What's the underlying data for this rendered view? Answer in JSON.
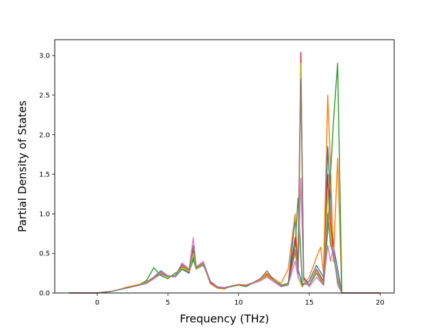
{
  "chart_data": {
    "type": "line",
    "title": "",
    "xlabel": "Frequency (THz)",
    "ylabel": "Partial Density of States",
    "xlim": [
      -3,
      21
    ],
    "ylim": [
      0,
      3.2
    ],
    "xticks": [
      0,
      5,
      10,
      15,
      20
    ],
    "yticks": [
      0.0,
      0.5,
      1.0,
      1.5,
      2.0,
      2.5,
      3.0
    ],
    "xtick_labels": [
      "0",
      "5",
      "10",
      "15",
      "20"
    ],
    "ytick_labels": [
      "0.0",
      "0.5",
      "1.0",
      "1.5",
      "2.0",
      "2.5",
      "3.0"
    ],
    "grid": false,
    "legend": "none",
    "series": [
      {
        "color": "#1f77b4",
        "x": [
          -2,
          -1,
          0,
          0.5,
          1,
          1.5,
          2,
          2.5,
          3,
          3.5,
          4,
          4.5,
          5,
          5.5,
          6,
          6.5,
          6.8,
          7,
          7.5,
          8,
          8.5,
          9,
          9.5,
          10,
          10.5,
          11,
          11.5,
          12,
          12.5,
          13,
          13.5,
          14,
          14.2,
          14.5,
          15,
          15.5,
          16,
          16.3,
          16.5,
          16.7,
          17,
          17.3,
          18,
          19,
          20
        ],
        "y": [
          0,
          0,
          0.0,
          0.01,
          0.02,
          0.04,
          0.06,
          0.08,
          0.1,
          0.14,
          0.2,
          0.28,
          0.22,
          0.2,
          0.3,
          0.25,
          0.45,
          0.3,
          0.35,
          0.15,
          0.08,
          0.06,
          0.08,
          0.1,
          0.09,
          0.12,
          0.16,
          0.22,
          0.15,
          0.08,
          0.1,
          0.95,
          0.3,
          0.1,
          0.15,
          0.35,
          0.2,
          1.85,
          1.2,
          0.6,
          0.3,
          0.0,
          0,
          0,
          0
        ]
      },
      {
        "color": "#ff7f0e",
        "x": [
          -2,
          -1,
          0,
          0.5,
          1,
          1.5,
          2,
          2.5,
          3,
          3.5,
          4,
          4.5,
          5,
          5.5,
          6,
          6.5,
          6.8,
          7,
          7.5,
          8,
          8.5,
          9,
          9.5,
          10,
          10.5,
          11,
          11.5,
          12,
          12.5,
          13,
          13.5,
          14,
          14.2,
          14.5,
          15,
          15.5,
          15.8,
          16,
          16.3,
          16.5,
          16.7,
          17,
          17.3,
          18,
          19,
          20
        ],
        "y": [
          0,
          0,
          0.0,
          0.01,
          0.02,
          0.04,
          0.07,
          0.09,
          0.11,
          0.15,
          0.18,
          0.24,
          0.2,
          0.22,
          0.35,
          0.28,
          0.5,
          0.32,
          0.38,
          0.12,
          0.06,
          0.05,
          0.09,
          0.11,
          0.1,
          0.13,
          0.18,
          0.25,
          0.18,
          0.12,
          0.3,
          1.0,
          0.2,
          0.08,
          0.2,
          0.45,
          0.58,
          0.25,
          2.5,
          1.6,
          0.4,
          1.7,
          0.0,
          0,
          0,
          0
        ]
      },
      {
        "color": "#2ca02c",
        "x": [
          -2,
          -1,
          0,
          0.5,
          1,
          1.5,
          2,
          2.5,
          3,
          3.5,
          4,
          4.5,
          5,
          5.5,
          6,
          6.5,
          6.8,
          7,
          7.5,
          8,
          8.5,
          9,
          9.5,
          10,
          10.5,
          11,
          11.5,
          12,
          12.5,
          13,
          13.5,
          14,
          14.2,
          14.5,
          15,
          15.5,
          16,
          16.3,
          16.5,
          16.7,
          17,
          17.3,
          18,
          19,
          20
        ],
        "y": [
          0,
          0,
          0.0,
          0.01,
          0.02,
          0.04,
          0.06,
          0.08,
          0.1,
          0.16,
          0.32,
          0.22,
          0.18,
          0.25,
          0.3,
          0.27,
          0.42,
          0.3,
          0.36,
          0.14,
          0.07,
          0.06,
          0.08,
          0.1,
          0.08,
          0.12,
          0.17,
          0.2,
          0.16,
          0.1,
          0.12,
          0.6,
          1.2,
          0.12,
          0.1,
          0.25,
          0.1,
          0.8,
          1.5,
          2.15,
          2.9,
          0.0,
          0,
          0,
          0
        ]
      },
      {
        "color": "#d62728",
        "x": [
          -2,
          -1,
          0,
          0.5,
          1,
          1.5,
          2,
          2.5,
          3,
          3.5,
          4,
          4.5,
          5,
          5.5,
          6,
          6.5,
          6.8,
          7,
          7.5,
          8,
          8.5,
          9,
          9.5,
          10,
          10.5,
          11,
          11.5,
          12,
          12.5,
          13,
          13.5,
          14,
          14.2,
          14.4,
          14.6,
          15,
          15.5,
          16,
          16.3,
          16.5,
          16.7,
          17,
          17.3,
          18,
          19,
          20
        ],
        "y": [
          0,
          0,
          0.0,
          0.01,
          0.02,
          0.04,
          0.06,
          0.08,
          0.1,
          0.13,
          0.19,
          0.26,
          0.21,
          0.21,
          0.33,
          0.26,
          0.55,
          0.31,
          0.37,
          0.13,
          0.07,
          0.06,
          0.08,
          0.1,
          0.09,
          0.12,
          0.16,
          0.23,
          0.16,
          0.09,
          0.11,
          0.7,
          0.4,
          3.04,
          0.2,
          0.1,
          0.3,
          0.15,
          1.5,
          0.9,
          0.5,
          0.2,
          0.0,
          0,
          0,
          0
        ]
      },
      {
        "color": "#bcbd22",
        "x": [
          -2,
          -1,
          0,
          0.5,
          1,
          1.5,
          2,
          2.5,
          3,
          3.5,
          4,
          4.5,
          5,
          5.5,
          6,
          6.5,
          6.8,
          7,
          7.5,
          8,
          8.5,
          9,
          9.5,
          10,
          10.5,
          11,
          11.5,
          12,
          12.5,
          13,
          13.5,
          14,
          14.2,
          14.4,
          14.6,
          15,
          15.5,
          16,
          16.3,
          16.5,
          16.7,
          17,
          17.3,
          18,
          19,
          20
        ],
        "y": [
          0,
          0,
          0.0,
          0.01,
          0.02,
          0.04,
          0.06,
          0.08,
          0.1,
          0.14,
          0.2,
          0.25,
          0.2,
          0.21,
          0.32,
          0.27,
          0.5,
          0.3,
          0.36,
          0.14,
          0.07,
          0.06,
          0.08,
          0.1,
          0.09,
          0.12,
          0.16,
          0.22,
          0.15,
          0.09,
          0.11,
          0.5,
          0.3,
          2.9,
          0.15,
          0.1,
          0.28,
          0.12,
          1.3,
          0.7,
          0.45,
          0.2,
          0.0,
          0,
          0,
          0
        ]
      },
      {
        "color": "#e377c2",
        "x": [
          -2,
          -1,
          0,
          0.5,
          1,
          1.5,
          2,
          2.5,
          3,
          3.5,
          4,
          4.5,
          5,
          5.5,
          6,
          6.5,
          6.8,
          7,
          7.5,
          8,
          8.5,
          9,
          9.5,
          10,
          10.5,
          11,
          11.5,
          12,
          12.5,
          13,
          13.5,
          14,
          14.2,
          14.4,
          14.6,
          15,
          15.5,
          16,
          16.3,
          16.5,
          16.7,
          17,
          17.3,
          18,
          19,
          20
        ],
        "y": [
          0,
          0,
          0.0,
          0.01,
          0.02,
          0.04,
          0.06,
          0.08,
          0.1,
          0.12,
          0.18,
          0.27,
          0.22,
          0.2,
          0.38,
          0.3,
          0.7,
          0.33,
          0.4,
          0.15,
          0.08,
          0.07,
          0.09,
          0.1,
          0.09,
          0.12,
          0.15,
          0.2,
          0.14,
          0.08,
          0.1,
          0.4,
          0.2,
          1.45,
          0.15,
          0.08,
          0.2,
          0.1,
          0.6,
          0.4,
          0.58,
          0.1,
          0.0,
          0,
          0,
          0
        ]
      },
      {
        "color": "#7f7f7f",
        "x": [
          -2,
          -1,
          0,
          0.5,
          1,
          1.5,
          2,
          2.5,
          3,
          3.5,
          4,
          4.5,
          5,
          5.5,
          6,
          6.5,
          6.8,
          7,
          7.5,
          8,
          8.5,
          9,
          9.5,
          10,
          10.5,
          11,
          11.5,
          12,
          12.5,
          13,
          13.5,
          14,
          14.2,
          14.4,
          14.6,
          15,
          15.5,
          16,
          16.3,
          16.5,
          16.7,
          17,
          17.3,
          18,
          19,
          20
        ],
        "y": [
          0,
          0,
          0.0,
          0.01,
          0.02,
          0.04,
          0.06,
          0.08,
          0.1,
          0.13,
          0.2,
          0.24,
          0.21,
          0.22,
          0.36,
          0.29,
          0.6,
          0.32,
          0.37,
          0.14,
          0.07,
          0.06,
          0.09,
          0.1,
          0.09,
          0.13,
          0.17,
          0.28,
          0.16,
          0.09,
          0.1,
          0.55,
          0.25,
          2.7,
          0.18,
          0.1,
          0.25,
          0.1,
          1.0,
          0.6,
          0.5,
          0.15,
          0.0,
          0,
          0,
          0
        ]
      }
    ]
  }
}
